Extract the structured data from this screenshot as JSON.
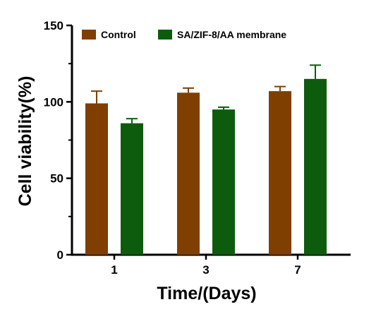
{
  "chart_data": {
    "type": "bar",
    "categories": [
      "1",
      "3",
      "7"
    ],
    "series": [
      {
        "name": "Control",
        "values": [
          99,
          106,
          107
        ],
        "errors": [
          8,
          3,
          3
        ],
        "color": "#7f3f00"
      },
      {
        "name": "SA/ZIF-8/AA membrane",
        "values": [
          86,
          95,
          115
        ],
        "errors": [
          3,
          1.5,
          9
        ],
        "color": "#0d5c0d"
      }
    ],
    "xlabel": "Time/(Days)",
    "ylabel": "Cell viability(%)",
    "ylim": [
      0,
      150
    ],
    "yticks": [
      0,
      50,
      100,
      150
    ],
    "grid": false,
    "legend_position": "top"
  }
}
